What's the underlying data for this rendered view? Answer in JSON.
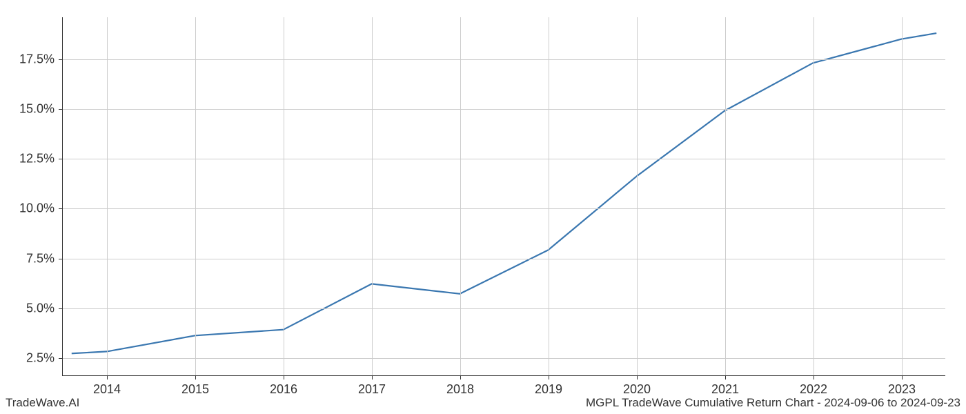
{
  "chart": {
    "type": "line",
    "x_values": [
      2013.6,
      2014,
      2015,
      2016,
      2017,
      2018,
      2019,
      2020,
      2021,
      2022,
      2023,
      2023.4
    ],
    "y_values": [
      2.7,
      2.8,
      3.6,
      3.9,
      6.2,
      5.7,
      7.9,
      11.6,
      14.9,
      17.3,
      18.5,
      18.8
    ],
    "x_ticks": [
      2014,
      2015,
      2016,
      2017,
      2018,
      2019,
      2020,
      2021,
      2022,
      2023
    ],
    "x_tick_labels": [
      "2014",
      "2015",
      "2016",
      "2017",
      "2018",
      "2019",
      "2020",
      "2021",
      "2022",
      "2023"
    ],
    "y_ticks": [
      2.5,
      5.0,
      7.5,
      10.0,
      12.5,
      15.0,
      17.5
    ],
    "y_tick_labels": [
      "2.5%",
      "5.0%",
      "7.5%",
      "10.0%",
      "12.5%",
      "15.0%",
      "17.5%"
    ],
    "xlim": [
      2013.5,
      2023.5
    ],
    "ylim": [
      1.6,
      19.6
    ],
    "line_color": "#3a77b0",
    "line_width": 2.2,
    "grid_color": "#cccccc",
    "background_color": "#ffffff",
    "axis_color": "#333333",
    "tick_fontsize": 18
  },
  "footer": {
    "left": "TradeWave.AI",
    "right": "MGPL TradeWave Cumulative Return Chart - 2024-09-06 to 2024-09-23"
  }
}
